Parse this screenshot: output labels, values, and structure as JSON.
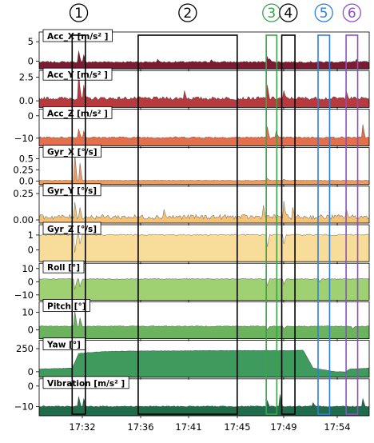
{
  "chart_data": {
    "type": "area",
    "title": "",
    "x_tick_labels": [
      "17:32",
      "17:36",
      "17:41",
      "17:45",
      "17:49",
      "17:54"
    ],
    "panels": [
      {
        "id": "acc_x",
        "label": "Acc_X [m/s² ]",
        "color": "#7b1c33",
        "ylim": [
          -2,
          7.5
        ],
        "yticks": [
          0,
          5
        ],
        "ytick_labels": [
          "0",
          "5"
        ],
        "base": -0.3,
        "noise": 0.4,
        "spikes": [
          [
            0.12,
            3.0
          ],
          [
            0.135,
            2.0
          ],
          [
            0.36,
            0.8
          ],
          [
            0.52,
            0.7
          ],
          [
            0.69,
            1.5
          ],
          [
            0.7,
            0.9
          ],
          [
            0.96,
            0.8
          ]
        ]
      },
      {
        "id": "acc_y",
        "label": "Acc_Y [m/s² ]",
        "color": "#b63a3e",
        "ylim": [
          -0.7,
          3.2
        ],
        "yticks": [
          0.0,
          2.5
        ],
        "ytick_labels": [
          "0.0",
          "2.5"
        ],
        "base": 0.2,
        "noise": 0.35,
        "spikes": [
          [
            0.12,
            2.8
          ],
          [
            0.135,
            1.5
          ],
          [
            0.44,
            0.9
          ],
          [
            0.69,
            1.5
          ],
          [
            0.74,
            0.9
          ],
          [
            0.93,
            0.9
          ]
        ]
      },
      {
        "id": "acc_z",
        "label": "Acc_Z [m/s² ]",
        "color": "#e2704c",
        "ylim": [
          -13.5,
          3
        ],
        "yticks": [
          -10,
          0
        ],
        "ytick_labels": [
          "−10",
          "0"
        ],
        "base": -9.8,
        "noise": 0.7,
        "spikes": [
          [
            0.12,
            4.0
          ],
          [
            0.135,
            3.0
          ],
          [
            0.69,
            5.0
          ],
          [
            0.72,
            3.0
          ],
          [
            0.98,
            6.0
          ]
        ]
      },
      {
        "id": "gyr_x",
        "label": "Gyr_X [°/s]",
        "color": "#ee9b5f",
        "ylim": [
          -0.08,
          0.75
        ],
        "yticks": [
          0.0,
          0.25,
          0.5
        ],
        "ytick_labels": [
          "0.0",
          "0.25",
          "0.5"
        ],
        "base": 0.01,
        "noise": 0.01,
        "spikes": [
          [
            0.11,
            0.62
          ],
          [
            0.125,
            0.4
          ],
          [
            0.69,
            0.05
          ],
          [
            0.74,
            0.03
          ]
        ]
      },
      {
        "id": "gyr_y",
        "label": "Gyr_Y [°/s]",
        "color": "#f3c177",
        "ylim": [
          -0.03,
          0.32
        ],
        "yticks": [
          0.0,
          0.25
        ],
        "ytick_labels": [
          "0.00",
          "0.25"
        ],
        "base": 0.02,
        "noise": 0.045,
        "spikes": [
          [
            0.11,
            0.15
          ],
          [
            0.125,
            0.1
          ],
          [
            0.38,
            0.08
          ],
          [
            0.68,
            0.12
          ],
          [
            0.74,
            0.16
          ],
          [
            0.77,
            0.1
          ],
          [
            0.93,
            0.09
          ]
        ]
      },
      {
        "id": "gyr_z",
        "label": "Gyr_Z [°/s]",
        "color": "#f7dd99",
        "ylim": [
          -0.8,
          1.7
        ],
        "yticks": [
          0,
          1
        ],
        "ytick_labels": [
          "0",
          "1"
        ],
        "base": 1.0,
        "noise": 0.08,
        "spikes": [
          [
            0.11,
            -1.2
          ],
          [
            0.125,
            -0.6
          ],
          [
            0.69,
            -0.8
          ],
          [
            0.74,
            -0.6
          ]
        ]
      },
      {
        "id": "roll",
        "label": "Roll [°]",
        "color": "#9fd072",
        "ylim": [
          -14,
          14
        ],
        "yticks": [
          -10,
          0,
          10
        ],
        "ytick_labels": [
          "−10",
          "0",
          "10"
        ],
        "base": 2.0,
        "noise": 0.6,
        "spikes": [
          [
            0.11,
            -8
          ],
          [
            0.125,
            -6
          ],
          [
            0.69,
            -5
          ],
          [
            0.74,
            -4
          ],
          [
            0.85,
            -2
          ]
        ]
      },
      {
        "id": "pitch",
        "label": "Pitch [°]",
        "color": "#6cb35d",
        "ylim": [
          -5,
          16
        ],
        "yticks": [
          0,
          10
        ],
        "ytick_labels": [
          "0",
          "10"
        ],
        "base": 2.0,
        "noise": 0.5,
        "spikes": [
          [
            0.11,
            9.0
          ],
          [
            0.125,
            5.0
          ],
          [
            0.69,
            -2.0
          ],
          [
            0.74,
            -1.5
          ],
          [
            0.95,
            -1.5
          ]
        ]
      },
      {
        "id": "yaw",
        "label": "Yaw [°]",
        "color": "#3f9a5e",
        "ylim": [
          -60,
          340
        ],
        "yticks": [
          0,
          250
        ],
        "ytick_labels": [
          "0",
          "250"
        ],
        "noise": 2.0,
        "profile": [
          [
            0.0,
            30
          ],
          [
            0.1,
            40
          ],
          [
            0.12,
            200
          ],
          [
            0.2,
            220
          ],
          [
            0.3,
            225
          ],
          [
            0.6,
            230
          ],
          [
            0.76,
            230
          ],
          [
            0.8,
            235
          ],
          [
            0.83,
            40
          ],
          [
            0.9,
            0
          ],
          [
            0.93,
            0
          ],
          [
            0.94,
            30
          ],
          [
            1.0,
            40
          ]
        ],
        "spikes": []
      },
      {
        "id": "vibration",
        "label": "Vibration [m/s² ]",
        "color": "#1f6b4c",
        "ylim": [
          -14.5,
          3.5
        ],
        "yticks": [
          -10,
          0
        ],
        "ytick_labels": [
          "−10",
          "0"
        ],
        "base": -10.0,
        "noise": 0.5,
        "spikes": [
          [
            0.12,
            5.0
          ],
          [
            0.135,
            4.0
          ],
          [
            0.69,
            3.0
          ],
          [
            0.73,
            6.0
          ],
          [
            0.83,
            2.0
          ],
          [
            0.98,
            4.0
          ]
        ]
      }
    ],
    "events": [
      {
        "num": "1",
        "color": "#000000",
        "x_start": 0.1,
        "x_end": 0.14
      },
      {
        "num": "2",
        "color": "#000000",
        "x_start": 0.3,
        "x_end": 0.6
      },
      {
        "num": "3",
        "color": "#3aa34a",
        "x_start": 0.688,
        "x_end": 0.72
      },
      {
        "num": "4",
        "color": "#000000",
        "x_start": 0.735,
        "x_end": 0.775
      },
      {
        "num": "5",
        "color": "#2f7fd8",
        "x_start": 0.845,
        "x_end": 0.88
      },
      {
        "num": "6",
        "color": "#8d4fc9",
        "x_start": 0.93,
        "x_end": 0.965
      }
    ]
  }
}
